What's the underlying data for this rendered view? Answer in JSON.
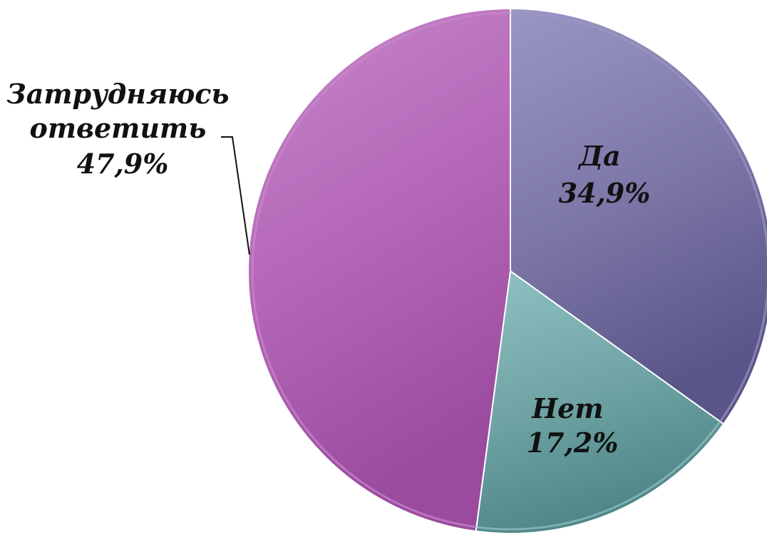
{
  "chart_data": {
    "type": "pie",
    "slices": [
      {
        "label": "Да",
        "value_label": "34,9%",
        "value": 34.9,
        "color": "#7b76a6",
        "color_light": "#9a96c4",
        "color_dark": "#5b5689"
      },
      {
        "label": "Нет",
        "value_label": "17,2%",
        "value": 17.2,
        "color": "#6fa3a4",
        "color_light": "#90c2c3",
        "color_dark": "#4e8688"
      },
      {
        "label": "Затрудняюсь ответить",
        "label_lines": [
          "Затрудняюсь",
          "ответить"
        ],
        "value_label": "47,9%",
        "value": 47.9,
        "color": "#b364b6",
        "color_light": "#c887cb",
        "color_dark": "#9a4b9e"
      }
    ],
    "start_angle_deg": 0,
    "direction": "clockwise",
    "legend": "none"
  }
}
